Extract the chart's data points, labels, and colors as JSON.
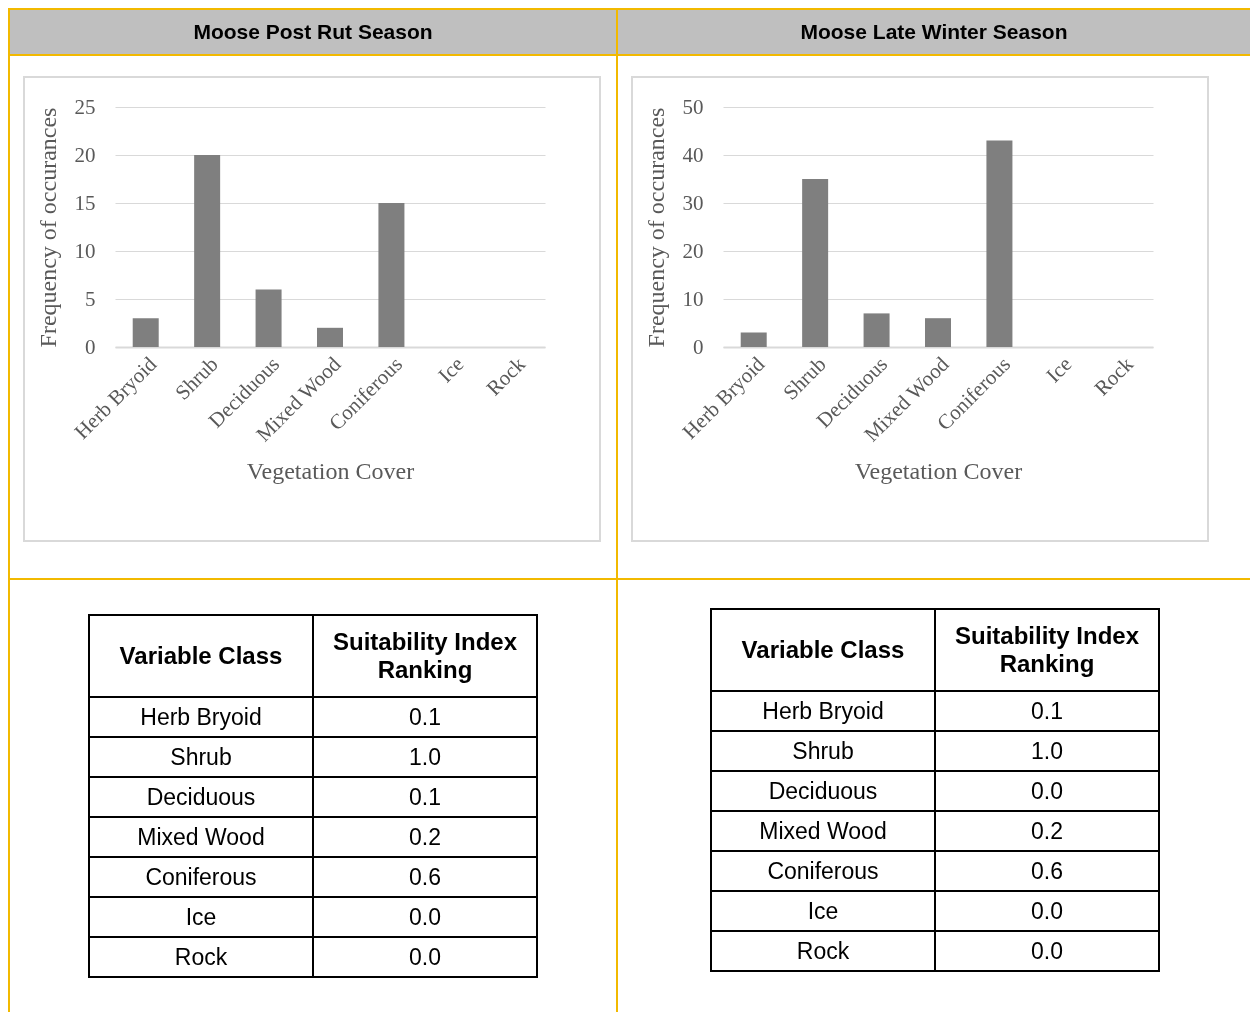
{
  "chart_data": [
    {
      "type": "bar",
      "title": "Moose Post Rut Season",
      "xlabel": "Vegetation Cover",
      "ylabel": "Frequency of occurances",
      "categories": [
        "Herb Bryoid",
        "Shrub",
        "Deciduous",
        "Mixed Wood",
        "Coniferous",
        "Ice",
        "Rock"
      ],
      "values": [
        3,
        20,
        6,
        2,
        15,
        0,
        0
      ],
      "color": "#7f7f7f",
      "ylim": [
        0,
        25
      ],
      "yticks": [
        0,
        5,
        10,
        15,
        20,
        25
      ],
      "grid": "y"
    },
    {
      "type": "bar",
      "title": "Moose Late Winter Season",
      "xlabel": "Vegetation Cover",
      "ylabel": "Frequency of occurances",
      "categories": [
        "Herb Bryoid",
        "Shrub",
        "Deciduous",
        "Mixed Wood",
        "Coniferous",
        "Ice",
        "Rock"
      ],
      "values": [
        3,
        35,
        7,
        6,
        43,
        0,
        0
      ],
      "color": "#7f7f7f",
      "ylim": [
        0,
        50
      ],
      "yticks": [
        0,
        10,
        20,
        30,
        40,
        50
      ],
      "grid": "y"
    },
    {
      "type": "other",
      "annotations": [
        "Variable Class",
        "Suitability Index Ranking"
      ],
      "categories": [
        "Herb Bryoid",
        "Shrub",
        "Deciduous",
        "Mixed Wood",
        "Coniferous",
        "Ice",
        "Rock"
      ],
      "value_labels": [
        "0.1",
        "1.0",
        "0.1",
        "0.2",
        "0.6",
        "0.0",
        "0.0"
      ]
    },
    {
      "type": "other",
      "annotations": [
        "Variable Class",
        "Suitability Index Ranking"
      ],
      "categories": [
        "Herb Bryoid",
        "Shrub",
        "Deciduous",
        "Mixed Wood",
        "Coniferous",
        "Ice",
        "Rock"
      ],
      "value_labels": [
        "0.1",
        "1.0",
        "0.0",
        "0.2",
        "0.6",
        "0.0",
        "0.0"
      ]
    }
  ]
}
